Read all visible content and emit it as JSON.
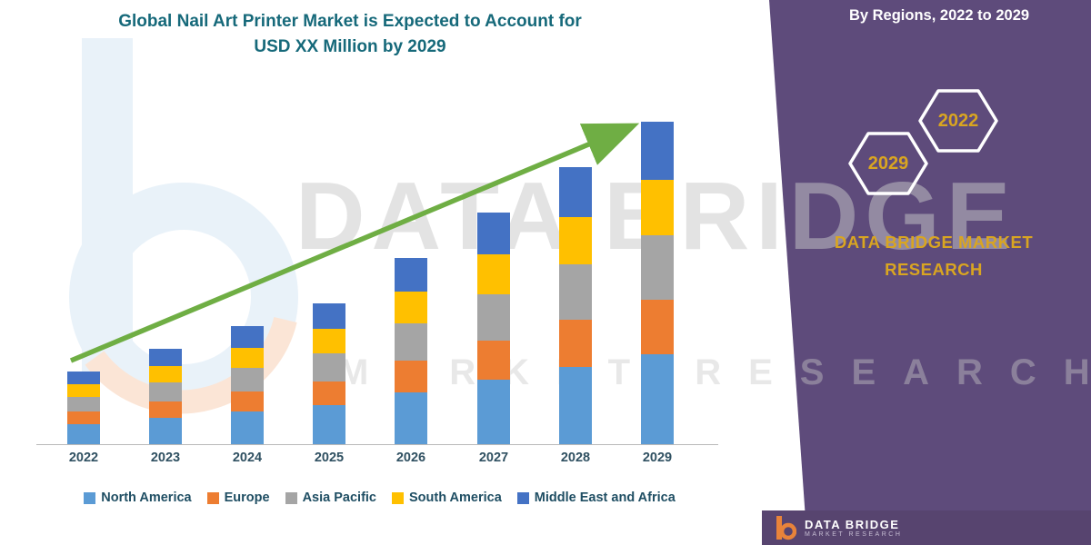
{
  "title": {
    "line1": "Global Nail Art Printer Market is Expected to Account for",
    "line2": "USD XX Million by 2029"
  },
  "panel": {
    "header": "By Regions, 2022 to 2029",
    "hexagons": [
      {
        "year": "2029"
      },
      {
        "year": "2022"
      }
    ],
    "brand_line1": "DATA BRIDGE MARKET",
    "brand_line2": "RESEARCH",
    "bg_color": "#5E4B7B",
    "accent_gold": "#D9A521"
  },
  "watermark": {
    "line1": "DATA BRIDGE",
    "line2": "MARKET RESEARCH"
  },
  "footer": {
    "brand": "DATA BRIDGE",
    "sub": "MARKET RESEARCH"
  },
  "colors": {
    "trend_arrow": "#6FAE44",
    "title_text": "#16697A",
    "axis_label": "#2F5061"
  },
  "chart_data": {
    "type": "bar",
    "stacked": true,
    "title": "Global Nail Art Printer Market is Expected to Account for USD XX Million by 2029",
    "xlabel": "",
    "ylabel": "",
    "grid": false,
    "legend_position": "bottom",
    "categories": [
      "2022",
      "2023",
      "2024",
      "2025",
      "2026",
      "2027",
      "2028",
      "2029"
    ],
    "series": [
      {
        "name": "North America",
        "color": "#5B9BD5",
        "values": [
          22,
          29,
          36,
          43,
          57,
          71,
          85,
          99
        ]
      },
      {
        "name": "Europe",
        "color": "#ED7D31",
        "values": [
          14,
          18,
          22,
          26,
          35,
          43,
          52,
          60
        ]
      },
      {
        "name": "Asia Pacific",
        "color": "#A5A5A5",
        "values": [
          16,
          21,
          26,
          31,
          41,
          51,
          61,
          71
        ]
      },
      {
        "name": "South America",
        "color": "#FFC000",
        "values": [
          14,
          18,
          22,
          27,
          35,
          44,
          52,
          61
        ]
      },
      {
        "name": "Middle East and Africa",
        "color": "#4472C4",
        "values": [
          14,
          19,
          24,
          28,
          37,
          46,
          55,
          64
        ]
      }
    ],
    "stacked_totals": [
      80,
      105,
      130,
      155,
      205,
      255,
      305,
      355
    ],
    "trend_arrow": true
  }
}
